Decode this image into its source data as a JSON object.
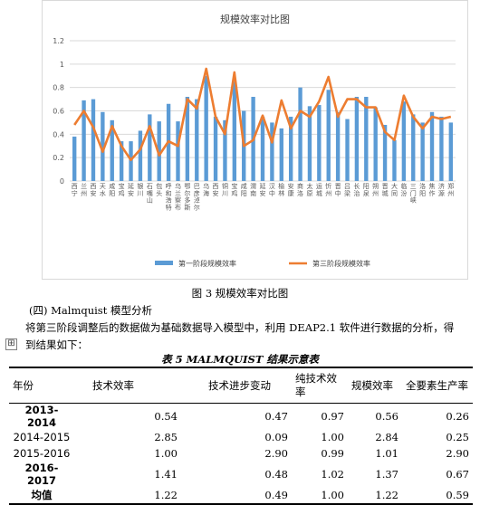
{
  "chart_data": {
    "type": "bar",
    "title": "规模效率对比图",
    "categories": [
      "西宁",
      "兰州",
      "西安",
      "天水",
      "咸阳",
      "宝鸡",
      "延安",
      "银川",
      "石嘴山",
      "包头",
      "呼和浩特",
      "乌兰察布",
      "鄂尔多斯",
      "巴彦淖尔",
      "乌海",
      "西安",
      "铜川",
      "宝鸡",
      "咸阳",
      "渭南",
      "延安",
      "汉中",
      "榆林",
      "安康",
      "商洛",
      "太原",
      "运城",
      "忻州",
      "晋中",
      "吕梁",
      "长治",
      "阳泉",
      "朔州",
      "晋城",
      "大同",
      "临汾",
      "三门峡",
      "洛阳",
      "焦作",
      "济源",
      "郑州"
    ],
    "ylim": [
      0,
      1.2
    ],
    "yticks": [
      "0",
      "0.2",
      "0.4",
      "0.6",
      "0.8",
      "1",
      "1.2"
    ],
    "series": [
      {
        "name": "第一阶段规模效率",
        "type": "bar",
        "color": "#5b9bd5",
        "values": [
          0.38,
          0.69,
          0.7,
          0.59,
          0.52,
          0.34,
          0.34,
          0.43,
          0.57,
          0.51,
          0.66,
          0.51,
          0.72,
          0.7,
          0.9,
          0.55,
          0.52,
          0.85,
          0.6,
          0.72,
          0.55,
          0.5,
          0.45,
          0.55,
          0.8,
          0.64,
          0.65,
          0.78,
          0.59,
          0.53,
          0.72,
          0.72,
          0.63,
          0.48,
          0.35,
          0.68,
          0.57,
          0.5,
          0.59,
          0.55,
          0.5
        ]
      },
      {
        "name": "第三阶段规模效率",
        "type": "line",
        "color": "#ed7d31",
        "values": [
          0.48,
          0.6,
          0.46,
          0.25,
          0.47,
          0.3,
          0.18,
          0.27,
          0.47,
          0.22,
          0.34,
          0.3,
          0.7,
          0.62,
          0.96,
          0.55,
          0.4,
          0.93,
          0.3,
          0.35,
          0.56,
          0.33,
          0.69,
          0.45,
          0.6,
          0.55,
          0.68,
          0.89,
          0.55,
          0.7,
          0.7,
          0.63,
          0.63,
          0.42,
          0.35,
          0.73,
          0.55,
          0.45,
          0.55,
          0.53,
          0.55
        ]
      }
    ],
    "legend_position": "bottom"
  },
  "figure_caption": "图 3  规模效率对比图",
  "heading": "(四) Malmquist 模型分析",
  "paragraph_line1": "将第三阶段调整后的数据做为基础数据导入模型中，利用 DEAP2.1 软件进行数据的分析，得",
  "paragraph_line2": "到结果如下：",
  "move_handle_glyph": "⊞",
  "table": {
    "caption": "表 5 MALMQUIST 结果示意表",
    "headers": [
      "年份",
      "技术效率",
      "技术进步变动",
      "纯技术效率",
      "规模效率",
      "全要素生产率"
    ],
    "rows": [
      [
        "2013-2014",
        "0.54",
        "0.47",
        "0.97",
        "0.56",
        "0.26"
      ],
      [
        "2014-2015",
        "2.85",
        "0.09",
        "1.00",
        "2.84",
        "0.25"
      ],
      [
        "2015-2016",
        "1.00",
        "2.90",
        "0.99",
        "1.01",
        "2.90"
      ],
      [
        "2016-2017",
        "1.41",
        "0.48",
        "1.02",
        "1.37",
        "0.67"
      ],
      [
        "均值",
        "1.22",
        "0.49",
        "1.00",
        "1.22",
        "0.59"
      ]
    ]
  }
}
